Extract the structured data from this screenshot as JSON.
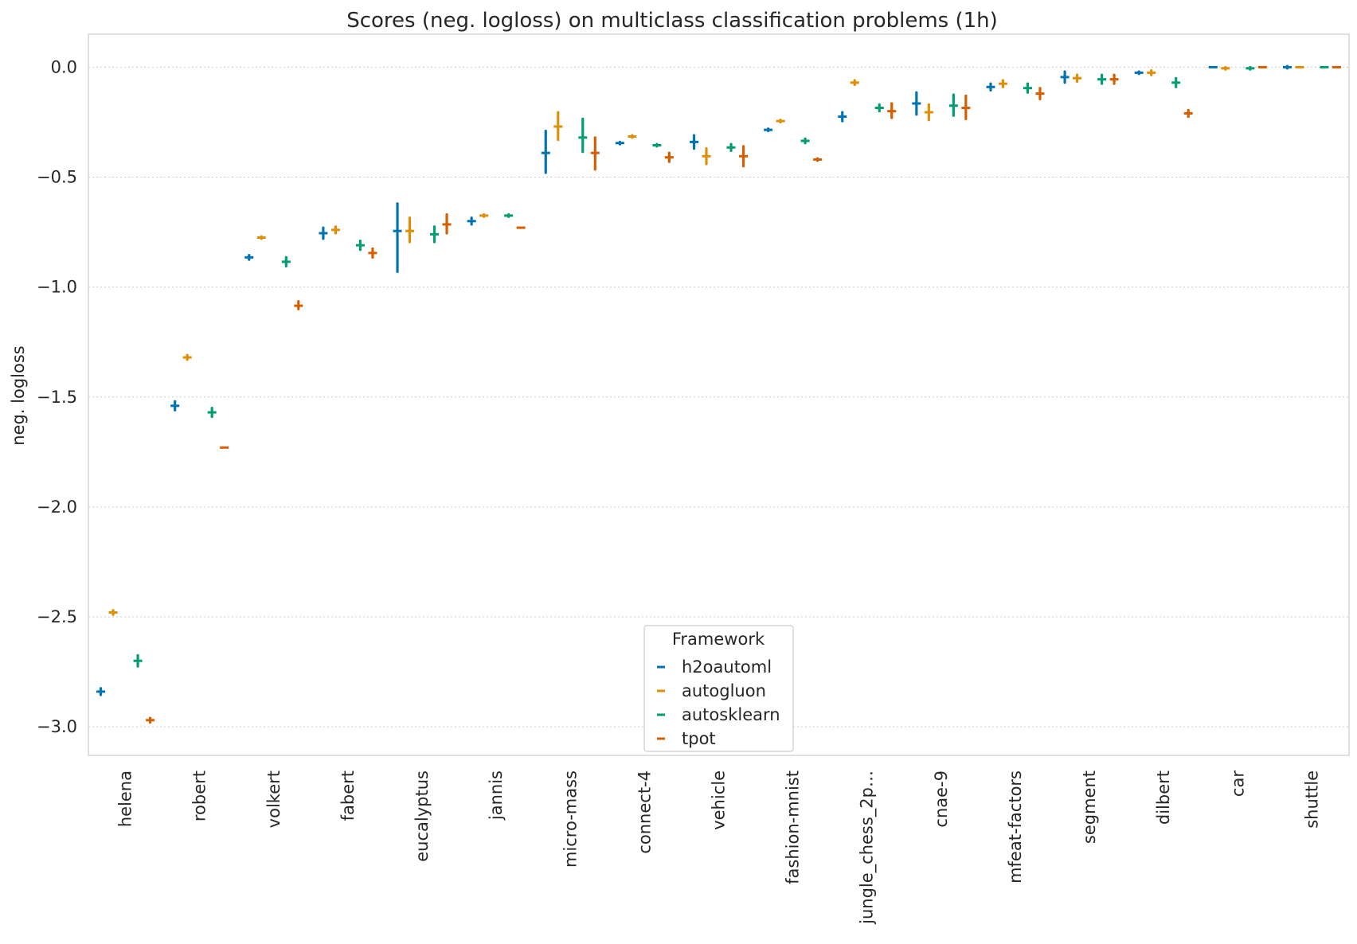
{
  "chart_data": {
    "type": "errorbar",
    "title": "Scores (neg. logloss) on  multiclass classification problems (1h)",
    "xlabel": "",
    "ylabel": "neg. logloss",
    "ylim": [
      -3.13,
      0.15
    ],
    "yticks": [
      0.0,
      -0.5,
      -1.0,
      -1.5,
      -2.0,
      -2.5,
      -3.0
    ],
    "ytick_labels": [
      "0.0",
      "−0.5",
      "−1.0",
      "−1.5",
      "−2.0",
      "−2.5",
      "−3.0"
    ],
    "grid": "horizontal dotted",
    "legend_placement": "lower center",
    "legend_title": "Framework",
    "categories": [
      "helena",
      "robert",
      "volkert",
      "fabert",
      "eucalyptus",
      "jannis",
      "micro-mass",
      "connect-4",
      "vehicle",
      "fashion-mnist",
      "jungle_chess_2p…",
      "cnae-9",
      "mfeat-factors",
      "segment",
      "dilbert",
      "car",
      "shuttle"
    ],
    "series": [
      {
        "name": "h2oautoml",
        "color": "#0173b2",
        "mean": [
          -2.84,
          -1.54,
          -0.865,
          -0.755,
          -0.745,
          -0.7,
          -0.39,
          -0.345,
          -0.34,
          -0.285,
          -0.225,
          -0.165,
          -0.09,
          -0.045,
          -0.025,
          0.0,
          0.0
        ],
        "lower": [
          -2.855,
          -1.56,
          -0.875,
          -0.78,
          -0.93,
          -0.715,
          -0.48,
          -0.35,
          -0.37,
          -0.29,
          -0.245,
          -0.215,
          -0.105,
          -0.07,
          -0.03,
          0.0,
          -0.005
        ],
        "upper": [
          -2.825,
          -1.52,
          -0.855,
          -0.73,
          -0.62,
          -0.685,
          -0.29,
          -0.34,
          -0.31,
          -0.28,
          -0.205,
          -0.115,
          -0.075,
          -0.02,
          -0.02,
          0.0,
          0.005
        ]
      },
      {
        "name": "autogluon",
        "color": "#de8f05",
        "mean": [
          -2.48,
          -1.32,
          -0.775,
          -0.74,
          -0.745,
          -0.675,
          -0.27,
          -0.315,
          -0.405,
          -0.245,
          -0.07,
          -0.205,
          -0.075,
          -0.05,
          -0.025,
          -0.005,
          0.0
        ],
        "lower": [
          -2.49,
          -1.33,
          -0.78,
          -0.755,
          -0.795,
          -0.68,
          -0.33,
          -0.32,
          -0.44,
          -0.25,
          -0.08,
          -0.24,
          -0.09,
          -0.065,
          -0.035,
          -0.01,
          0.0
        ],
        "upper": [
          -2.47,
          -1.31,
          -0.77,
          -0.725,
          -0.685,
          -0.67,
          -0.205,
          -0.31,
          -0.37,
          -0.24,
          -0.06,
          -0.17,
          -0.06,
          -0.035,
          -0.015,
          0.0,
          0.0
        ]
      },
      {
        "name": "autosklearn",
        "color": "#029e73",
        "mean": [
          -2.7,
          -1.57,
          -0.885,
          -0.81,
          -0.76,
          -0.675,
          -0.32,
          -0.355,
          -0.365,
          -0.335,
          -0.185,
          -0.175,
          -0.095,
          -0.055,
          -0.07,
          -0.005,
          0.0
        ],
        "lower": [
          -2.725,
          -1.59,
          -0.905,
          -0.83,
          -0.795,
          -0.68,
          -0.385,
          -0.36,
          -0.38,
          -0.345,
          -0.2,
          -0.22,
          -0.115,
          -0.075,
          -0.09,
          -0.01,
          0.0
        ],
        "upper": [
          -2.675,
          -1.55,
          -0.865,
          -0.79,
          -0.725,
          -0.67,
          -0.235,
          -0.35,
          -0.35,
          -0.325,
          -0.17,
          -0.125,
          -0.075,
          -0.035,
          -0.05,
          0.0,
          0.0
        ]
      },
      {
        "name": "tpot",
        "color": "#d55e00",
        "mean": [
          -2.97,
          -1.73,
          -1.085,
          -0.845,
          -0.715,
          -0.73,
          -0.39,
          -0.41,
          -0.405,
          -0.42,
          -0.2,
          -0.185,
          -0.12,
          -0.055,
          -0.21,
          0.0,
          0.0
        ],
        "lower": [
          -2.98,
          -1.73,
          -1.1,
          -0.865,
          -0.755,
          -0.73,
          -0.465,
          -0.43,
          -0.45,
          -0.425,
          -0.23,
          -0.235,
          -0.145,
          -0.075,
          -0.225,
          0.0,
          0.0
        ],
        "upper": [
          -2.96,
          -1.73,
          -1.065,
          -0.825,
          -0.67,
          -0.73,
          -0.32,
          -0.39,
          -0.36,
          -0.415,
          -0.165,
          -0.13,
          -0.095,
          -0.035,
          -0.195,
          0.0,
          0.0
        ]
      }
    ]
  }
}
